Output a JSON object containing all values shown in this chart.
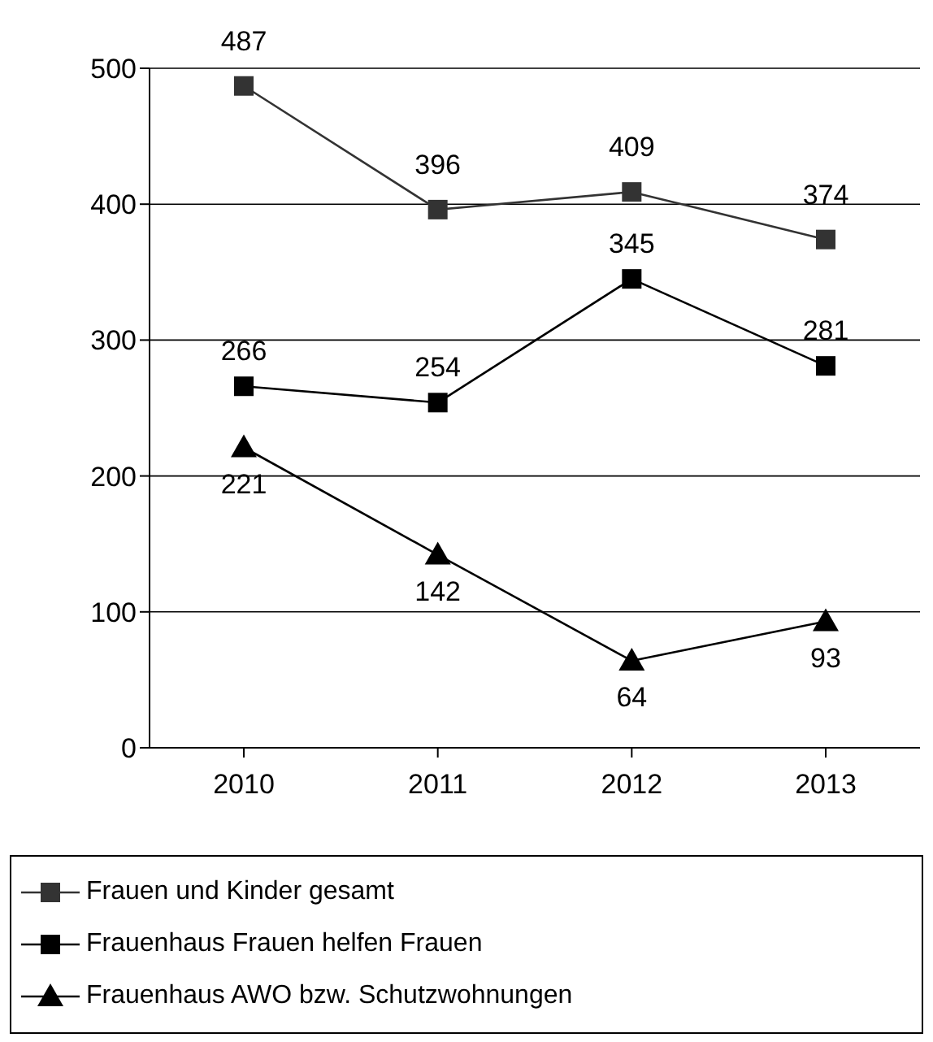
{
  "chart_data": {
    "type": "line",
    "categories": [
      "2010",
      "2011",
      "2012",
      "2013"
    ],
    "series": [
      {
        "name": "Frauen und Kinder gesamt",
        "color": "#333333",
        "marker": "square",
        "values": [
          487,
          396,
          409,
          374
        ]
      },
      {
        "name": "Frauenhaus Frauen helfen Frauen",
        "color": "#000000",
        "marker": "square",
        "values": [
          266,
          254,
          345,
          281
        ]
      },
      {
        "name": "Frauenhaus AWO bzw. Schutzwohnungen",
        "color": "#000000",
        "marker": "triangle",
        "values": [
          221,
          142,
          64,
          93
        ]
      }
    ],
    "ylim": [
      0,
      500
    ],
    "yticks": [
      0,
      100,
      200,
      300,
      400,
      500
    ],
    "grid": "y",
    "legend": "bottom",
    "data_labels": true,
    "line_style": "solid"
  }
}
